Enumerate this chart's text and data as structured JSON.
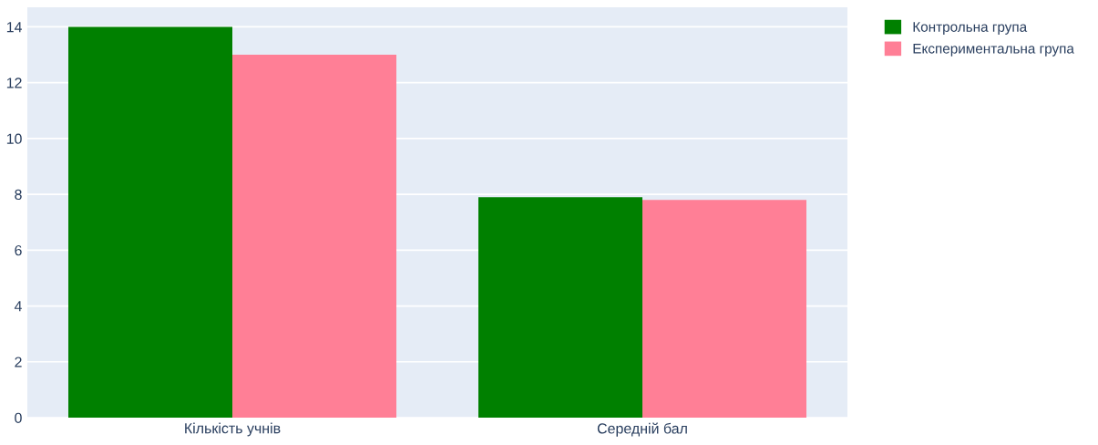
{
  "chart_data": {
    "type": "bar",
    "categories": [
      "Кількість учнів",
      "Середній бал"
    ],
    "series": [
      {
        "name": "Контрольна група",
        "color": "#008000",
        "values": [
          14,
          7.9
        ]
      },
      {
        "name": "Експериментальна група",
        "color": "#ff7f96",
        "values": [
          13,
          7.8
        ]
      }
    ],
    "ylim": [
      0,
      14.7
    ],
    "yticks": [
      0,
      2,
      4,
      6,
      8,
      10,
      12,
      14
    ],
    "grid": "y",
    "legend": "top right"
  }
}
